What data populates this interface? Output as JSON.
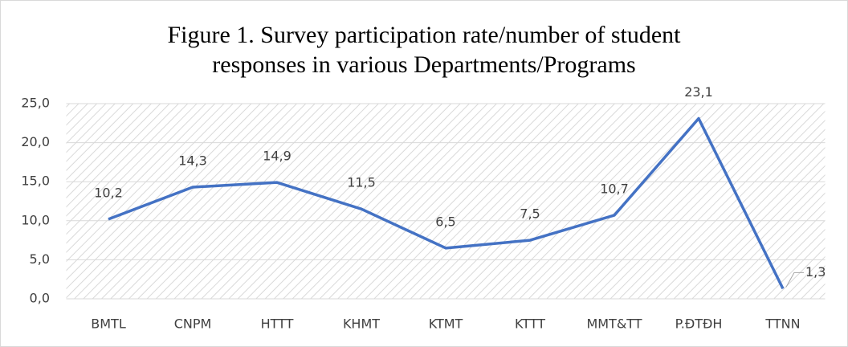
{
  "chart_data": {
    "type": "line",
    "title": [
      "Figure 1. Survey participation rate/number of student",
      "responses in various Departments/Programs"
    ],
    "categories": [
      "BMTL",
      "CNPM",
      "HTTT",
      "KHMT",
      "KTMT",
      "KTTT",
      "MMT&TT",
      "P.ĐTĐH",
      "TTNN"
    ],
    "series": [
      {
        "name": null,
        "color": "#4472c4",
        "values": [
          10.2,
          14.3,
          14.9,
          11.5,
          6.5,
          7.5,
          10.7,
          23.1,
          1.3
        ],
        "value_labels": [
          "10,2",
          "14,3",
          "14,9",
          "11,5",
          "6,5",
          "7,5",
          "10,7",
          "23,1",
          "1,3"
        ]
      }
    ],
    "ylim": [
      0,
      25
    ],
    "yticks": [
      {
        "value": 0,
        "label": "0,0"
      },
      {
        "value": 5,
        "label": "5,0"
      },
      {
        "value": 10,
        "label": "10,0"
      },
      {
        "value": 15,
        "label": "15,0"
      },
      {
        "value": 20,
        "label": "20,0"
      },
      {
        "value": 25,
        "label": "25,0"
      }
    ],
    "grid": true
  }
}
